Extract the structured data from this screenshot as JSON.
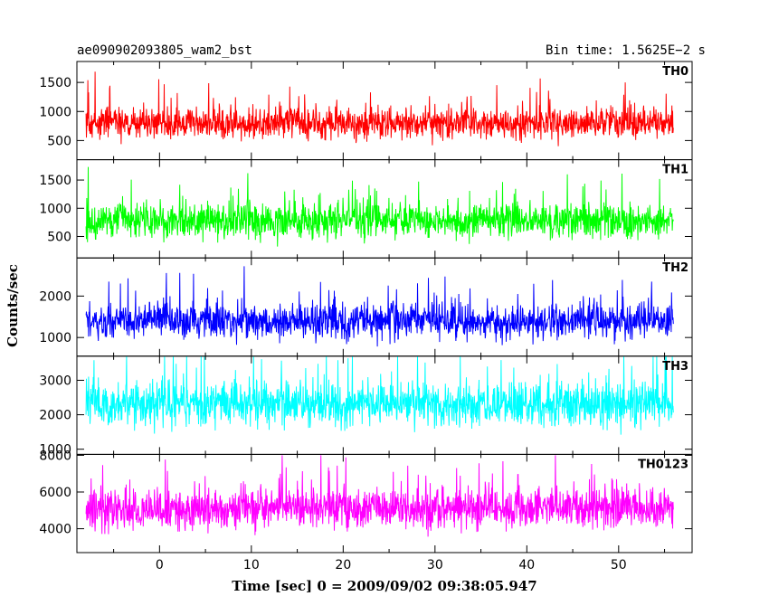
{
  "chart_data": {
    "type": "line",
    "title": "ae090902093805_wam2_bst",
    "subtitle": "Bin time: 1.5625E−2 s",
    "xlabel": "Time [sec] 0 = 2009/09/02 09:38:05.947",
    "ylabel": "Counts/sec",
    "xlim": [
      -9,
      58
    ],
    "x_ticks": [
      0,
      10,
      20,
      30,
      40,
      50
    ],
    "x_range_data": [
      -8,
      56
    ],
    "panels": [
      {
        "name": "TH0",
        "color": "#ff0000",
        "ylim": [
          170,
          1860
        ],
        "y_ticks": [
          500,
          1000,
          1500
        ],
        "baseline": 800,
        "noise": 190,
        "min": 330,
        "max": 1860
      },
      {
        "name": "TH1",
        "color": "#00ff00",
        "ylim": [
          120,
          1860
        ],
        "y_ticks": [
          500,
          1000,
          1500
        ],
        "baseline": 780,
        "noise": 220,
        "min": 250,
        "max": 1850
      },
      {
        "name": "TH2",
        "color": "#0000ff",
        "ylim": [
          550,
          2920
        ],
        "y_ticks": [
          1000,
          2000
        ],
        "baseline": 1400,
        "noise": 300,
        "min": 700,
        "max": 2900
      },
      {
        "name": "TH3",
        "color": "#00ffff",
        "ylim": [
          850,
          3700
        ],
        "y_ticks": [
          1000,
          2000,
          3000
        ],
        "baseline": 2300,
        "noise": 450,
        "min": 950,
        "max": 3700
      },
      {
        "name": "TH0123",
        "color": "#ff00ff",
        "ylim": [
          2700,
          8050
        ],
        "y_ticks": [
          4000,
          6000,
          8000
        ],
        "baseline": 5100,
        "noise": 800,
        "min": 2900,
        "max": 8000
      }
    ]
  }
}
